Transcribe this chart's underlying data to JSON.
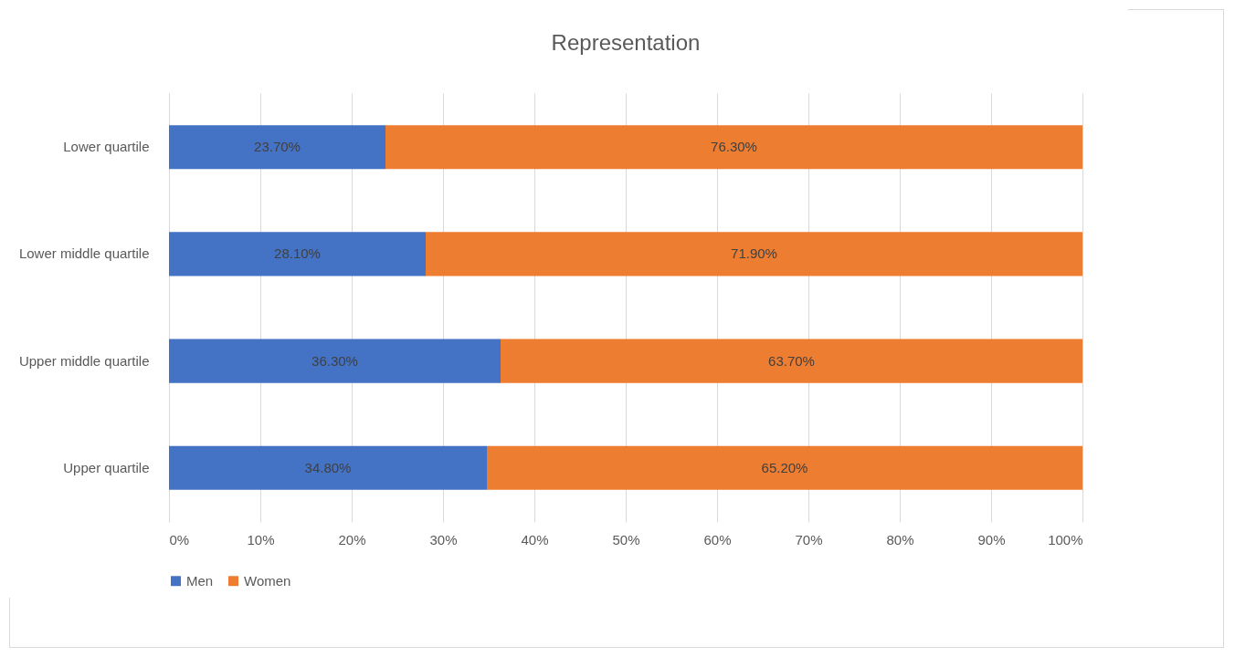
{
  "chart_data": {
    "type": "bar",
    "orientation": "horizontal",
    "stacked": true,
    "title": "Representation",
    "categories": [
      "Lower quartile",
      "Lower middle quartile",
      "Upper middle quartile",
      "Upper quartile"
    ],
    "series": [
      {
        "name": "Men",
        "color": "#4472c4",
        "values": [
          23.7,
          28.1,
          36.3,
          34.8
        ],
        "value_labels": [
          "23.70%",
          "28.10%",
          "36.30%",
          "34.80%"
        ]
      },
      {
        "name": "Women",
        "color": "#ed7d31",
        "values": [
          76.3,
          71.9,
          63.7,
          65.2
        ],
        "value_labels": [
          "76.30%",
          "71.90%",
          "63.70%",
          "65.20%"
        ]
      }
    ],
    "xlim": [
      0,
      100
    ],
    "xticks": [
      {
        "value": 0,
        "label": "0%"
      },
      {
        "value": 10,
        "label": "10%"
      },
      {
        "value": 20,
        "label": "20%"
      },
      {
        "value": 30,
        "label": "30%"
      },
      {
        "value": 40,
        "label": "40%"
      },
      {
        "value": 50,
        "label": "50%"
      },
      {
        "value": 60,
        "label": "60%"
      },
      {
        "value": 70,
        "label": "70%"
      },
      {
        "value": 80,
        "label": "80%"
      },
      {
        "value": 90,
        "label": "90%"
      },
      {
        "value": 100,
        "label": "100%"
      }
    ],
    "grid": "x",
    "legend": "bottom"
  }
}
